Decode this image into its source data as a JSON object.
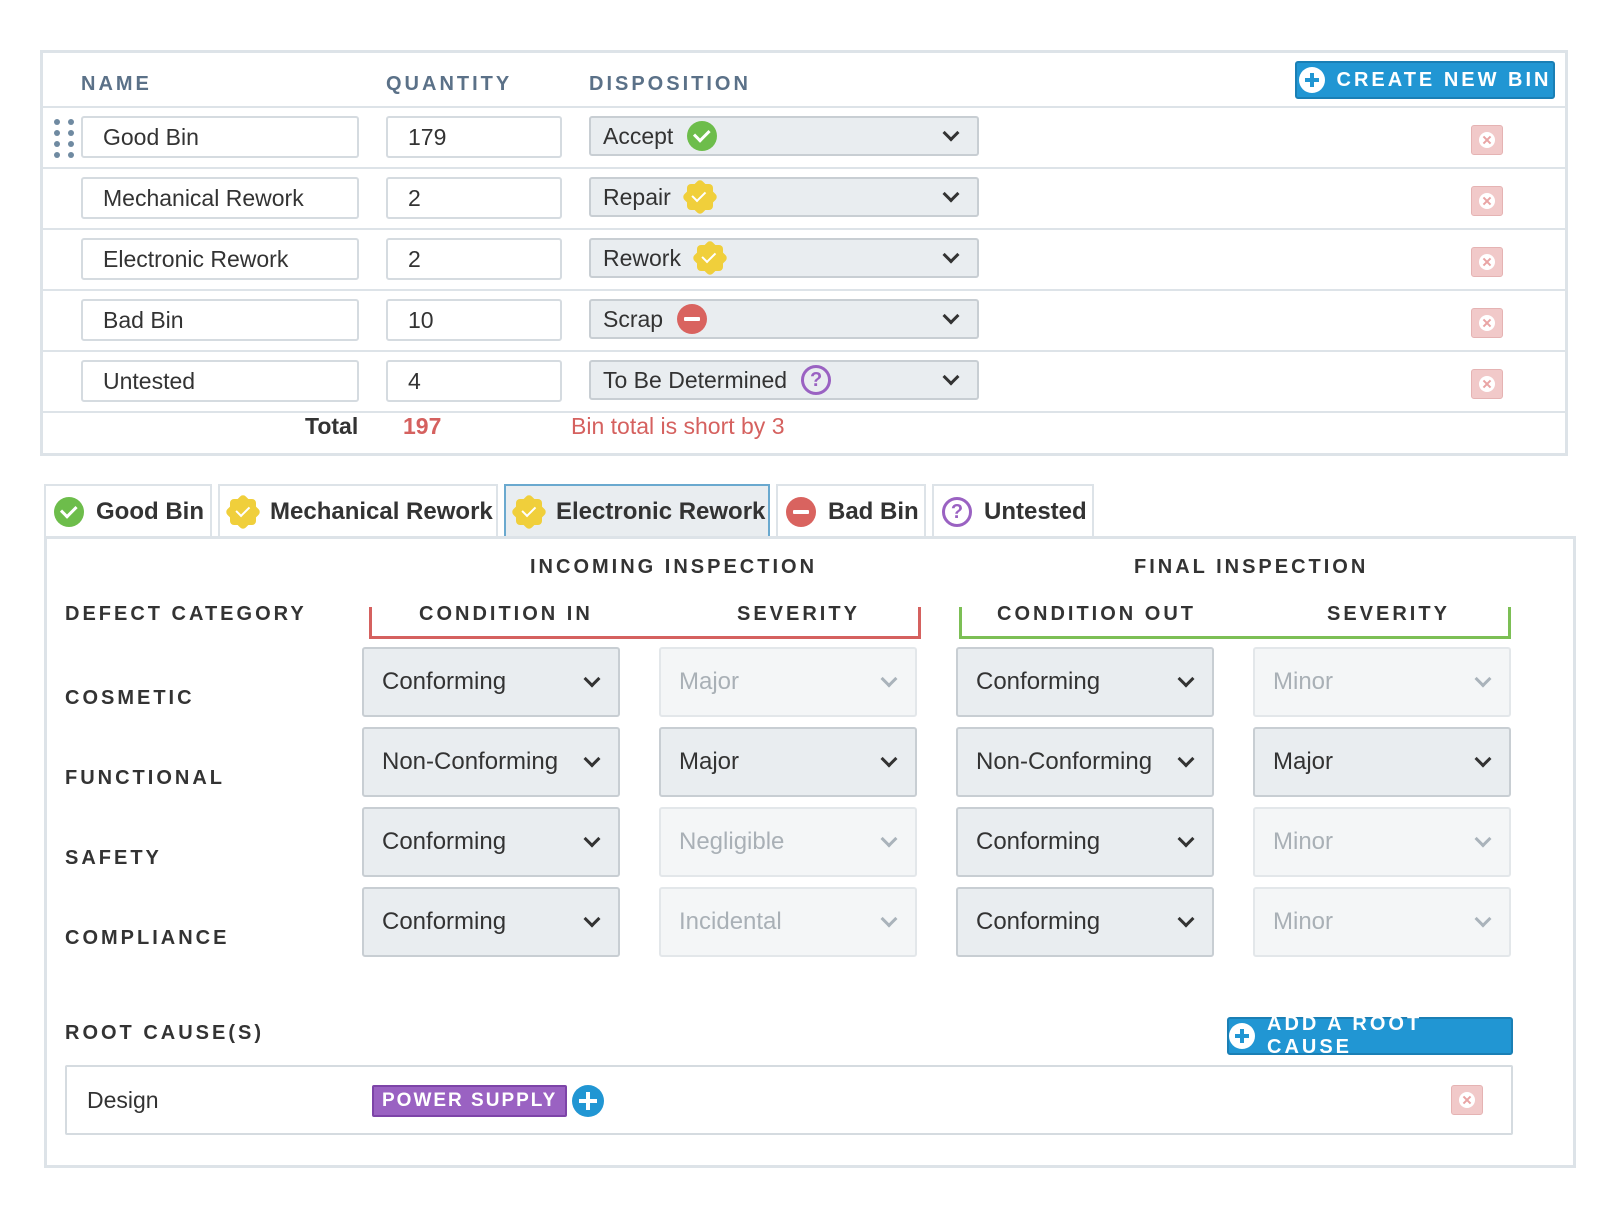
{
  "bins_table": {
    "headers": {
      "name": "NAME",
      "quantity": "QUANTITY",
      "disposition": "DISPOSITION"
    },
    "create_button_label": "CREATE NEW BIN",
    "rows": [
      {
        "name": "Good Bin",
        "quantity": "179",
        "disposition": "Accept",
        "badge": "check-icon"
      },
      {
        "name": "Mechanical Rework",
        "quantity": "2",
        "disposition": "Repair",
        "badge": "rework-icon"
      },
      {
        "name": "Electronic Rework",
        "quantity": "2",
        "disposition": "Rework",
        "badge": "rework-icon"
      },
      {
        "name": "Bad Bin",
        "quantity": "10",
        "disposition": "Scrap",
        "badge": "scrap-icon"
      },
      {
        "name": "Untested",
        "quantity": "4",
        "disposition": "To Be Determined",
        "badge": "question-icon"
      }
    ],
    "total_label": "Total",
    "total_value": "197",
    "total_message": "Bin total is short by 3"
  },
  "tabs": [
    {
      "label": "Good Bin",
      "badge": "check-icon"
    },
    {
      "label": "Mechanical Rework",
      "badge": "rework-icon"
    },
    {
      "label": "Electronic Rework",
      "badge": "rework-icon",
      "active": true
    },
    {
      "label": "Bad Bin",
      "badge": "scrap-icon"
    },
    {
      "label": "Untested",
      "badge": "question-icon"
    }
  ],
  "inspection": {
    "incoming_title": "INCOMING INSPECTION",
    "final_title": "FINAL INSPECTION",
    "defect_category_label": "DEFECT CATEGORY",
    "condition_in_label": "CONDITION IN",
    "severity_in_label": "SEVERITY",
    "condition_out_label": "CONDITION OUT",
    "severity_out_label": "SEVERITY",
    "categories": [
      {
        "label": "COSMETIC",
        "condition_in": "Conforming",
        "severity_in": "Major",
        "condition_out": "Conforming",
        "severity_out": "Minor"
      },
      {
        "label": "FUNCTIONAL",
        "condition_in": "Non-Conforming",
        "severity_in": "Major",
        "condition_out": "Non-Conforming",
        "severity_out": "Major"
      },
      {
        "label": "SAFETY",
        "condition_in": "Conforming",
        "severity_in": "Negligible",
        "condition_out": "Conforming",
        "severity_out": "Minor"
      },
      {
        "label": "COMPLIANCE",
        "condition_in": "Conforming",
        "severity_in": "Incidental",
        "condition_out": "Conforming",
        "severity_out": "Minor"
      }
    ],
    "root_cause_label": "ROOT CAUSE(S)",
    "add_root_cause_label": "ADD A ROOT CAUSE",
    "root_causes": [
      {
        "name": "Design",
        "tag": "POWER SUPPLY"
      }
    ]
  },
  "colors": {
    "accent": "#2196d3",
    "accept": "#6dbd4b",
    "rework": "#f0cf3b",
    "scrap": "#d9635f",
    "tbd": "#9a62c2",
    "error_text": "#d5615f"
  }
}
